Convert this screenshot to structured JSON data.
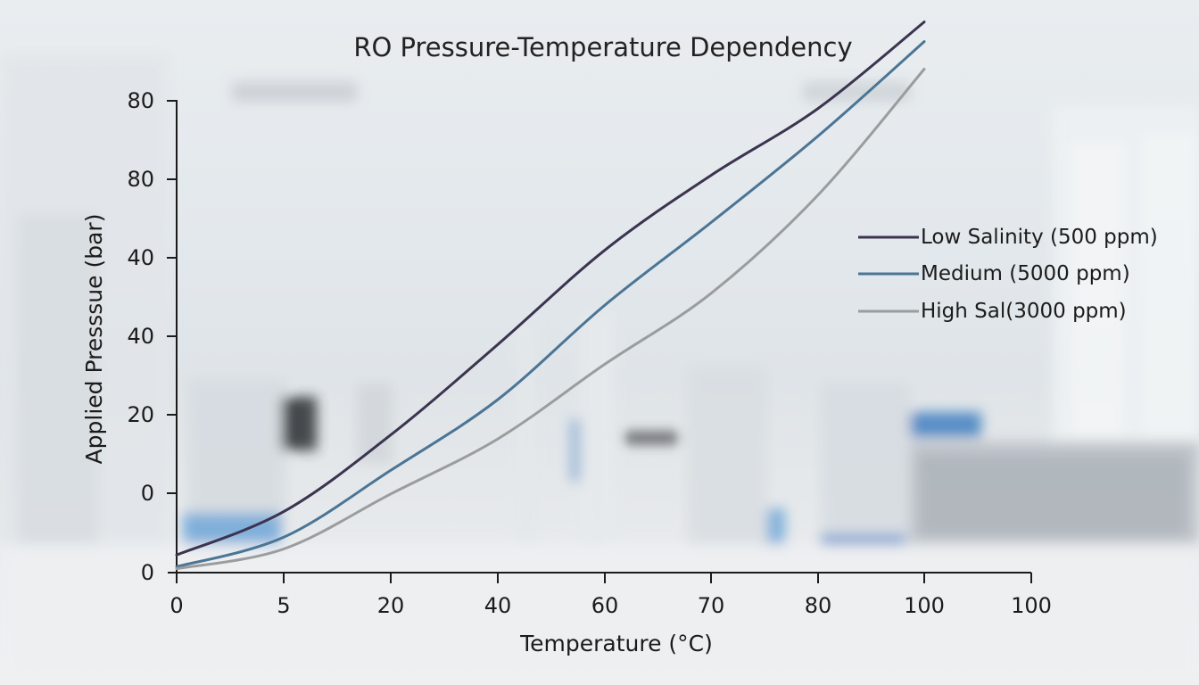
{
  "chart_data": {
    "type": "line",
    "title": "RO Pressure-Temperature Dependency",
    "xlabel": "Temperature (°C)",
    "ylabel": "Applied Presssue (bar)",
    "x_tick_labels": [
      "0",
      "5",
      "20",
      "40",
      "60",
      "70",
      "80",
      "100",
      "100"
    ],
    "y_tick_labels": [
      "0",
      "0",
      "20",
      "40",
      "40",
      "80",
      "80"
    ],
    "grid": false,
    "legend_position": "right",
    "series": [
      {
        "name": "Low Salinity (500 ppm)",
        "color": "#3b3450",
        "x": [
          0,
          5,
          20,
          40,
          60,
          70,
          80,
          100
        ],
        "y": [
          4.5,
          15.5,
          35,
          58,
          82,
          101,
          118,
          140
        ]
      },
      {
        "name": "Medium (5000 ppm)",
        "color": "#4b7595",
        "x": [
          0,
          5,
          20,
          40,
          60,
          70,
          80,
          100
        ],
        "y": [
          1.5,
          9,
          26,
          44,
          68,
          89,
          111,
          135
        ]
      },
      {
        "name": "High Sal(3000 ppm)",
        "color": "#9a9c9e",
        "x": [
          0,
          5,
          20,
          40,
          60,
          70,
          80,
          100
        ],
        "y": [
          1,
          6,
          20,
          34,
          53,
          71,
          96,
          128
        ]
      }
    ]
  }
}
